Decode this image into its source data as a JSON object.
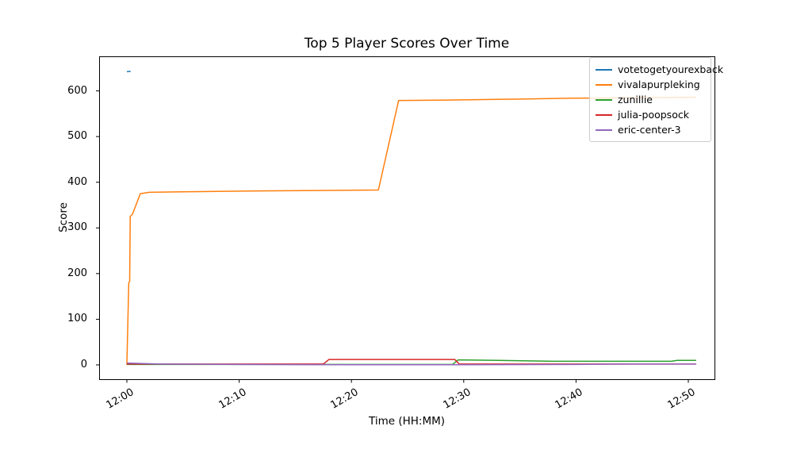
{
  "figure": {
    "title": "Top 5 Player Scores Over Time",
    "xlabel": "Time (HH:MM)",
    "ylabel": "Score"
  },
  "chart_data": {
    "type": "line",
    "title": "Top 5 Player Scores Over Time",
    "xlabel": "Time (HH:MM)",
    "ylabel": "Score",
    "x_unit": "minutes after 12:00",
    "grid": false,
    "legend_position": "upper right",
    "xlim": [
      -2.47,
      52.33
    ],
    "ylim": [
      -31.3,
      675.7
    ],
    "x_ticks": [
      {
        "value": 0,
        "label": "12:00"
      },
      {
        "value": 10,
        "label": "12:10"
      },
      {
        "value": 20,
        "label": "12:20"
      },
      {
        "value": 30,
        "label": "12:30"
      },
      {
        "value": 40,
        "label": "12:40"
      },
      {
        "value": 50,
        "label": "12:50"
      }
    ],
    "y_ticks": [
      {
        "value": 0,
        "label": "0"
      },
      {
        "value": 100,
        "label": "100"
      },
      {
        "value": 200,
        "label": "200"
      },
      {
        "value": 300,
        "label": "300"
      },
      {
        "value": 400,
        "label": "400"
      },
      {
        "value": 500,
        "label": "500"
      },
      {
        "value": 600,
        "label": "600"
      }
    ],
    "series": [
      {
        "name": "votetogetyourexback",
        "color": "#1f77b4",
        "points": [
          [
            0,
            642
          ],
          [
            0.33,
            643
          ]
        ]
      },
      {
        "name": "vivalapurpleking",
        "color": "#ff7f0e",
        "points": [
          [
            0,
            0
          ],
          [
            0.17,
            180
          ],
          [
            0.25,
            183
          ],
          [
            0.3,
            325
          ],
          [
            0.5,
            330
          ],
          [
            1.2,
            375
          ],
          [
            2,
            378
          ],
          [
            5,
            379
          ],
          [
            8,
            380
          ],
          [
            12,
            381
          ],
          [
            17,
            382
          ],
          [
            22.4,
            383
          ],
          [
            24.2,
            579
          ],
          [
            28.6,
            580
          ],
          [
            34.6,
            582
          ],
          [
            39.7,
            584
          ],
          [
            45.3,
            585
          ],
          [
            50.7,
            586
          ]
        ]
      },
      {
        "name": "zunillie",
        "color": "#2ca02c",
        "points": [
          [
            0,
            1
          ],
          [
            10,
            1
          ],
          [
            20,
            1
          ],
          [
            29,
            1
          ],
          [
            29.5,
            11
          ],
          [
            33,
            10
          ],
          [
            38,
            8
          ],
          [
            44,
            8
          ],
          [
            48.5,
            8
          ],
          [
            49,
            10
          ],
          [
            50.7,
            10
          ]
        ]
      },
      {
        "name": "julia-poopsock",
        "color": "#d62728",
        "points": [
          [
            0,
            2
          ],
          [
            17.5,
            2
          ],
          [
            18,
            12
          ],
          [
            29.2,
            12
          ],
          [
            29.6,
            2
          ],
          [
            50.7,
            2
          ]
        ]
      },
      {
        "name": "eric-center-3",
        "color": "#9467bd",
        "points": [
          [
            0,
            4
          ],
          [
            3,
            2
          ],
          [
            10,
            1
          ],
          [
            20,
            0.5
          ],
          [
            30,
            0.5
          ],
          [
            40,
            1
          ],
          [
            45,
            2
          ],
          [
            50.7,
            2
          ]
        ]
      }
    ]
  }
}
